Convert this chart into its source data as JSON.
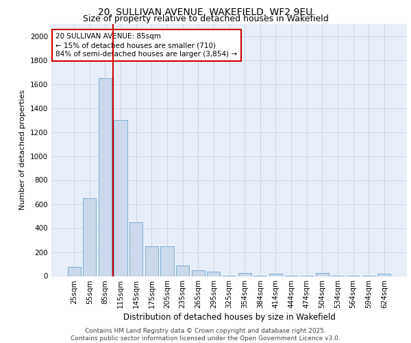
{
  "title_line1": "20, SULLIVAN AVENUE, WAKEFIELD, WF2 9EU",
  "title_line2": "Size of property relative to detached houses in Wakefield",
  "xlabel": "Distribution of detached houses by size in Wakefield",
  "ylabel": "Number of detached properties",
  "categories": [
    "25sqm",
    "55sqm",
    "85sqm",
    "115sqm",
    "145sqm",
    "175sqm",
    "205sqm",
    "235sqm",
    "265sqm",
    "295sqm",
    "325sqm",
    "354sqm",
    "384sqm",
    "414sqm",
    "444sqm",
    "474sqm",
    "504sqm",
    "534sqm",
    "564sqm",
    "594sqm",
    "624sqm"
  ],
  "values": [
    75,
    650,
    1650,
    1300,
    450,
    250,
    250,
    90,
    50,
    35,
    5,
    25,
    5,
    20,
    5,
    5,
    25,
    5,
    5,
    5,
    20
  ],
  "bar_color": "#ccd9ea",
  "bar_edge_color": "#7bafd4",
  "vline_color": "#cc0000",
  "vline_position": 2.5,
  "annotation_text": "20 SULLIVAN AVENUE: 85sqm\n← 15% of detached houses are smaller (710)\n84% of semi-detached houses are larger (3,854) →",
  "annotation_box_color": "#ffffff",
  "annotation_box_edge_color": "#cc0000",
  "ylim": [
    0,
    2100
  ],
  "yticks": [
    0,
    200,
    400,
    600,
    800,
    1000,
    1200,
    1400,
    1600,
    1800,
    2000
  ],
  "grid_color": "#ccd6e8",
  "bg_color": "#e8eef8",
  "footer_line1": "Contains HM Land Registry data © Crown copyright and database right 2025.",
  "footer_line2": "Contains public sector information licensed under the Open Government Licence v3.0.",
  "title_fontsize": 10,
  "subtitle_fontsize": 9,
  "ylabel_fontsize": 8,
  "xlabel_fontsize": 8.5,
  "tick_fontsize": 7.5,
  "annotation_fontsize": 7.5,
  "footer_fontsize": 6.5
}
